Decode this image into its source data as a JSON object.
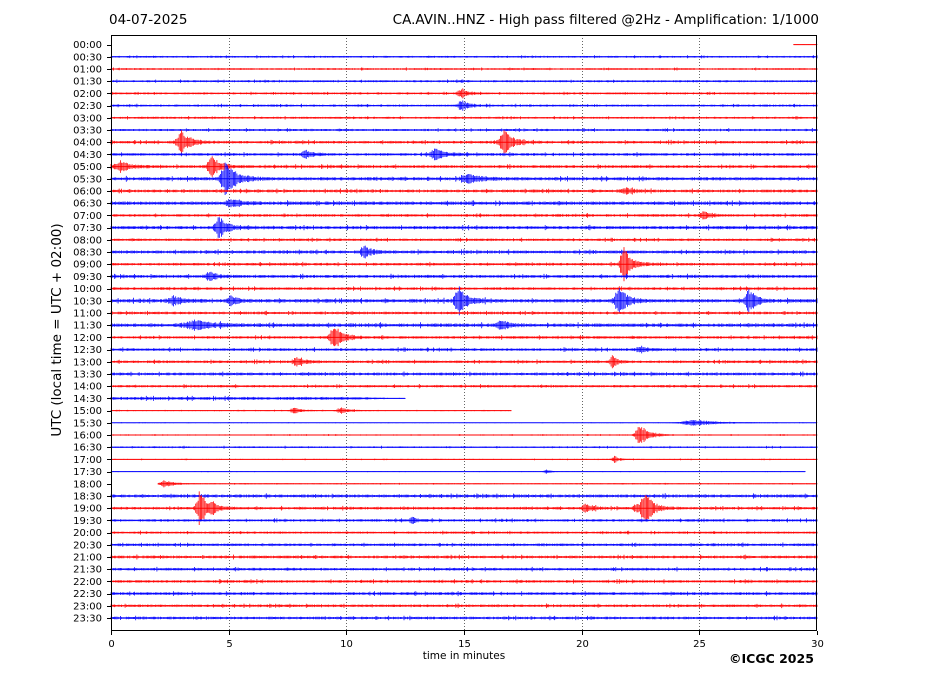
{
  "header": {
    "date": "04-07-2025",
    "title": "CA.AVIN..HNZ - High pass filtered @2Hz - Amplification: 1/1000"
  },
  "footer": {
    "copyright": "©ICGC 2025"
  },
  "chart_data": {
    "type": "line",
    "title": "CA.AVIN..HNZ - High pass filtered @2Hz - Amplification: 1/1000",
    "xlabel": "time in minutes",
    "ylabel": "UTC (local time = UTC + 02:00)",
    "xlim": [
      0,
      30
    ],
    "xticks": [
      0,
      5,
      10,
      15,
      20,
      25,
      30
    ],
    "grid": "vertical dotted at x ticks",
    "colors": {
      "odd_rows": "#ff0000",
      "even_rows": "#0000ff"
    },
    "rows": [
      {
        "label": "00:00",
        "color": "#ff0000",
        "noise": 0.3,
        "start": 29,
        "end": 30,
        "events": []
      },
      {
        "label": "00:30",
        "color": "#0000ff",
        "noise": 0.9,
        "events": []
      },
      {
        "label": "01:00",
        "color": "#ff0000",
        "noise": 0.9,
        "events": []
      },
      {
        "label": "01:30",
        "color": "#0000ff",
        "noise": 1.0,
        "events": []
      },
      {
        "label": "02:00",
        "color": "#ff0000",
        "noise": 1.0,
        "events": [
          [
            14.9,
            4,
            0.3
          ]
        ]
      },
      {
        "label": "02:30",
        "color": "#0000ff",
        "noise": 1.0,
        "events": [
          [
            14.9,
            5,
            0.3
          ]
        ]
      },
      {
        "label": "03:00",
        "color": "#ff0000",
        "noise": 1.0,
        "events": []
      },
      {
        "label": "03:30",
        "color": "#0000ff",
        "noise": 1.1,
        "events": []
      },
      {
        "label": "04:00",
        "color": "#ff0000",
        "noise": 1.3,
        "events": [
          [
            3.0,
            11,
            0.35
          ],
          [
            16.7,
            12,
            0.35
          ]
        ]
      },
      {
        "label": "04:30",
        "color": "#0000ff",
        "noise": 1.3,
        "events": [
          [
            8.3,
            4,
            0.3
          ],
          [
            13.8,
            5,
            0.4
          ]
        ]
      },
      {
        "label": "05:00",
        "color": "#ff0000",
        "noise": 1.4,
        "events": [
          [
            0.4,
            5,
            0.4
          ],
          [
            4.3,
            10,
            0.35
          ]
        ]
      },
      {
        "label": "05:30",
        "color": "#0000ff",
        "noise": 1.6,
        "events": [
          [
            4.9,
            16,
            0.4
          ],
          [
            15.2,
            4,
            0.5
          ]
        ]
      },
      {
        "label": "06:00",
        "color": "#ff0000",
        "noise": 1.4,
        "events": [
          [
            21.9,
            3,
            0.3
          ]
        ]
      },
      {
        "label": "06:30",
        "color": "#0000ff",
        "noise": 1.7,
        "events": [
          [
            5.1,
            4,
            0.4
          ]
        ]
      },
      {
        "label": "07:00",
        "color": "#ff0000",
        "noise": 1.3,
        "events": [
          [
            25.2,
            3,
            0.3
          ]
        ]
      },
      {
        "label": "07:30",
        "color": "#0000ff",
        "noise": 1.6,
        "events": [
          [
            4.6,
            10,
            0.35
          ]
        ]
      },
      {
        "label": "08:00",
        "color": "#ff0000",
        "noise": 1.2,
        "events": []
      },
      {
        "label": "08:30",
        "color": "#0000ff",
        "noise": 1.5,
        "events": [
          [
            10.8,
            5,
            0.3
          ]
        ]
      },
      {
        "label": "09:00",
        "color": "#ff0000",
        "noise": 1.3,
        "events": [
          [
            21.8,
            17,
            0.3
          ]
        ]
      },
      {
        "label": "09:30",
        "color": "#0000ff",
        "noise": 1.5,
        "events": [
          [
            4.2,
            4,
            0.3
          ]
        ]
      },
      {
        "label": "10:00",
        "color": "#ff0000",
        "noise": 1.3,
        "events": []
      },
      {
        "label": "10:30",
        "color": "#0000ff",
        "noise": 1.7,
        "events": [
          [
            2.7,
            4,
            0.4
          ],
          [
            5.1,
            4,
            0.3
          ],
          [
            14.8,
            13,
            0.35
          ],
          [
            21.6,
            12,
            0.35
          ],
          [
            27.1,
            12,
            0.3
          ]
        ]
      },
      {
        "label": "11:00",
        "color": "#ff0000",
        "noise": 1.3,
        "events": []
      },
      {
        "label": "11:30",
        "color": "#0000ff",
        "noise": 1.7,
        "events": [
          [
            3.6,
            4,
            0.8
          ],
          [
            16.6,
            4,
            0.3
          ]
        ]
      },
      {
        "label": "12:00",
        "color": "#ff0000",
        "noise": 1.3,
        "events": [
          [
            9.5,
            12,
            0.35
          ]
        ]
      },
      {
        "label": "12:30",
        "color": "#0000ff",
        "noise": 1.3,
        "events": [
          [
            22.5,
            3,
            0.3
          ]
        ]
      },
      {
        "label": "13:00",
        "color": "#ff0000",
        "noise": 1.3,
        "events": [
          [
            7.9,
            4,
            0.3
          ],
          [
            21.3,
            6,
            0.2
          ]
        ]
      },
      {
        "label": "13:30",
        "color": "#0000ff",
        "noise": 1.4,
        "events": []
      },
      {
        "label": "14:00",
        "color": "#ff0000",
        "noise": 1.2,
        "events": []
      },
      {
        "label": "14:30",
        "color": "#0000ff",
        "noise": 1.5,
        "end": 12.5,
        "tail": 0.5,
        "events": []
      },
      {
        "label": "15:00",
        "color": "#ff0000",
        "noise": 0.5,
        "end": 17,
        "events": [
          [
            7.8,
            3,
            0.3
          ],
          [
            9.8,
            3,
            0.3
          ]
        ]
      },
      {
        "label": "15:30",
        "color": "#0000ff",
        "noise": 0.3,
        "events": [
          [
            24.8,
            3,
            1.0
          ]
        ]
      },
      {
        "label": "16:00",
        "color": "#ff0000",
        "noise": 0.6,
        "events": [
          [
            22.5,
            11,
            0.35
          ]
        ]
      },
      {
        "label": "16:30",
        "color": "#0000ff",
        "noise": 0.8,
        "events": []
      },
      {
        "label": "17:00",
        "color": "#ff0000",
        "noise": 0.5,
        "events": [
          [
            21.4,
            3,
            0.2
          ]
        ]
      },
      {
        "label": "17:30",
        "color": "#0000ff",
        "noise": 0.3,
        "end": 29.5,
        "events": [
          [
            18.5,
            2,
            0.2
          ]
        ]
      },
      {
        "label": "18:00",
        "color": "#ff0000",
        "noise": 0.5,
        "start": 2,
        "events": [
          [
            2.3,
            3,
            0.4
          ]
        ]
      },
      {
        "label": "18:30",
        "color": "#0000ff",
        "noise": 1.5,
        "events": []
      },
      {
        "label": "19:00",
        "color": "#ff0000",
        "noise": 1.3,
        "events": [
          [
            3.8,
            17,
            0.3
          ],
          [
            4.3,
            4,
            0.2
          ],
          [
            20.2,
            4,
            0.3
          ],
          [
            22.3,
            4,
            0.2
          ],
          [
            22.7,
            17,
            0.3
          ]
        ]
      },
      {
        "label": "19:30",
        "color": "#0000ff",
        "noise": 1.2,
        "events": [
          [
            12.8,
            3,
            0.2
          ]
        ]
      },
      {
        "label": "20:00",
        "color": "#ff0000",
        "noise": 1.1,
        "events": []
      },
      {
        "label": "20:30",
        "color": "#0000ff",
        "noise": 1.3,
        "events": []
      },
      {
        "label": "21:00",
        "color": "#ff0000",
        "noise": 1.4,
        "events": []
      },
      {
        "label": "21:30",
        "color": "#0000ff",
        "noise": 1.3,
        "events": []
      },
      {
        "label": "22:00",
        "color": "#ff0000",
        "noise": 1.3,
        "events": []
      },
      {
        "label": "22:30",
        "color": "#0000ff",
        "noise": 1.4,
        "events": []
      },
      {
        "label": "23:00",
        "color": "#ff0000",
        "noise": 1.3,
        "events": []
      },
      {
        "label": "23:30",
        "color": "#0000ff",
        "noise": 1.3,
        "events": []
      }
    ]
  }
}
